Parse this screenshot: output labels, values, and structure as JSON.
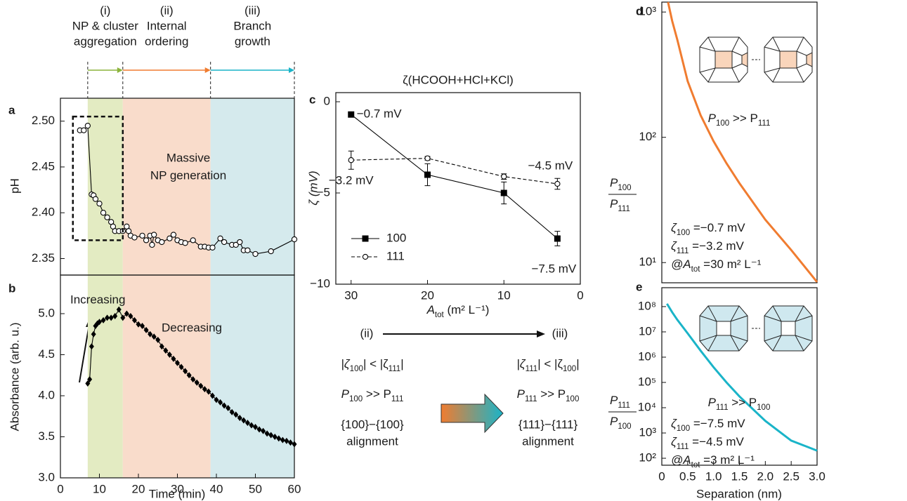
{
  "chart_data": [
    {
      "type": "line",
      "label": "a",
      "ylabel": "pH",
      "phases": [
        {
          "label": [
            "(i)",
            "NP & cluster",
            "aggregation"
          ],
          "start": 7,
          "end": 16,
          "color": "#8cb43c",
          "shade": "#e3ebc2"
        },
        {
          "label": [
            "(ii)",
            "Internal",
            "ordering"
          ],
          "start": 16,
          "end": 38.5,
          "color": "#f07c30",
          "shade": "#f9dccb"
        },
        {
          "label": [
            "(iii)",
            "Branch",
            "growth"
          ],
          "start": 38.5,
          "end": 60,
          "color": "#1ab4c8",
          "shade": "#d5eaed"
        }
      ],
      "x": [
        5,
        6,
        7,
        8,
        8.5,
        9,
        10,
        11,
        12,
        13,
        13.5,
        14,
        15,
        16,
        17,
        17.5,
        18,
        19,
        21,
        22,
        23,
        23.5,
        24,
        25,
        26,
        28,
        29,
        30,
        31,
        32,
        34,
        36,
        37,
        38,
        39,
        41,
        42,
        44,
        45,
        46,
        47,
        48,
        50,
        54,
        60
      ],
      "series": [
        {
          "values": [
            2.49,
            2.49,
            2.495,
            2.42,
            2.419,
            2.415,
            2.41,
            2.4,
            2.395,
            2.39,
            2.385,
            2.38,
            2.38,
            2.38,
            2.385,
            2.38,
            2.375,
            2.373,
            2.375,
            2.37,
            2.375,
            2.365,
            2.376,
            2.37,
            2.368,
            2.372,
            2.376,
            2.37,
            2.368,
            2.367,
            2.37,
            2.363,
            2.363,
            2.362,
            2.362,
            2.372,
            2.368,
            2.365,
            2.365,
            2.368,
            2.359,
            2.359,
            2.355,
            2.358,
            2.371
          ],
          "color": "#000000",
          "marker": "open-circle"
        }
      ],
      "xlim": [
        0,
        60
      ],
      "ylim": [
        2.332,
        2.525
      ],
      "yticks": [
        2.35,
        {
          "value": 2.4,
          "label": "2.40"
        },
        2.45,
        {
          "value": 2.5,
          "label": "2.50"
        }
      ],
      "highlight_box": {
        "x": [
          3.2,
          16
        ],
        "y": [
          2.37,
          2.505
        ]
      },
      "annotation": [
        "Massive",
        "NP generation"
      ]
    },
    {
      "type": "line",
      "label": "b",
      "xlabel": "Time (min)",
      "ylabel": "Absorbance (arb. u.)",
      "x": [
        7,
        7.5,
        8,
        8.5,
        9,
        9.5,
        10,
        11,
        12,
        13,
        14,
        15,
        16,
        17,
        18,
        19,
        20,
        21,
        22,
        23,
        24,
        25,
        26,
        27,
        28,
        29,
        30,
        31,
        32,
        33,
        34,
        35,
        36,
        37,
        38,
        39,
        40,
        41,
        42,
        43,
        44,
        45,
        46,
        47,
        48,
        49,
        50,
        51,
        52,
        53,
        54,
        55,
        56,
        57,
        58,
        59,
        60
      ],
      "series": [
        {
          "values": [
            4.15,
            4.2,
            4.6,
            4.75,
            4.85,
            4.88,
            4.9,
            4.92,
            4.95,
            4.95,
            4.97,
            5.05,
            4.95,
            5.0,
            4.97,
            4.92,
            4.87,
            4.85,
            4.8,
            4.75,
            4.72,
            4.68,
            4.6,
            4.55,
            4.5,
            4.45,
            4.4,
            4.35,
            4.3,
            4.25,
            4.2,
            4.16,
            4.12,
            4.08,
            4.05,
            4.0,
            3.95,
            3.92,
            3.88,
            3.85,
            3.8,
            3.77,
            3.73,
            3.7,
            3.67,
            3.64,
            3.62,
            3.59,
            3.57,
            3.54,
            3.52,
            3.5,
            3.48,
            3.46,
            3.45,
            3.43,
            3.41
          ],
          "color": "#000000",
          "marker": "diamond"
        }
      ],
      "xlim": [
        0,
        60
      ],
      "xticks": [
        0,
        10,
        20,
        30,
        40,
        50,
        60
      ],
      "ylim": [
        3.0,
        5.47
      ],
      "yticks": [
        {
          "value": 3,
          "label": "3.0"
        },
        3.5,
        {
          "value": 4,
          "label": "4.0"
        },
        4.5,
        {
          "value": 5,
          "label": "5.0"
        }
      ],
      "annotations": [
        "Increasing",
        "Decreasing"
      ]
    },
    {
      "type": "line",
      "label": "c",
      "title": "ζ(HCOOH+HCl+KCl)",
      "ylabel": "ζ (mV)",
      "xlabel": [
        "A",
        "tot",
        " (m² L⁻¹)"
      ],
      "x": [
        30,
        20,
        10,
        3
      ],
      "series": [
        {
          "name": "100",
          "values": [
            -0.7,
            -4.0,
            -5.0,
            -7.5
          ],
          "errors": [
            0.1,
            0.6,
            0.6,
            0.4
          ],
          "value_labels": [
            "−0.7 mV",
            null,
            null,
            "−7.5 mV"
          ],
          "value_label_colors": [
            "#f07c30",
            null,
            null,
            "#1ab4c8"
          ],
          "color": "#000000",
          "marker": "filled-square",
          "dashed": false
        },
        {
          "name": "111",
          "values": [
            -3.2,
            -3.1,
            -4.1,
            -4.5
          ],
          "errors": [
            0.5,
            0.1,
            0.15,
            0.3
          ],
          "value_labels": [
            "−3.2 mV",
            null,
            null,
            "−4.5 mV"
          ],
          "value_label_colors": [
            "#f07c30",
            null,
            null,
            "#1ab4c8"
          ],
          "color": "#000000",
          "marker": "open-circle",
          "dashed": true
        }
      ],
      "xlim": [
        32,
        0
      ],
      "xticks": [
        30,
        20,
        10,
        0
      ],
      "ylim": [
        -10,
        0.5
      ],
      "yticks": [
        0,
        {
          "value": -5,
          "label": "−5"
        },
        {
          "value": -10,
          "label": "−10"
        }
      ]
    },
    {
      "type": "line",
      "label": "d",
      "log": true,
      "ylabel": {
        "numerator": [
          "P",
          "100"
        ],
        "denominator": [
          "P",
          "111"
        ]
      },
      "x": [
        0.12,
        0.2,
        0.3,
        0.5,
        0.75,
        1,
        1.25,
        1.5,
        2,
        2.5,
        3
      ],
      "series": [
        {
          "values": [
            1200,
            850,
            600,
            280,
            150,
            93,
            62,
            43,
            22,
            12.6,
            7
          ],
          "color": "#f07c30",
          "marker": "none"
        }
      ],
      "xlim": [
        0,
        3
      ],
      "ylim": [
        6.9,
        1200
      ],
      "yticks": [
        {
          "value": 10,
          "label": "10¹"
        },
        {
          "value": 100,
          "label": "10²"
        },
        {
          "value": 1000,
          "label": "10³"
        }
      ],
      "compare": [
        "P",
        "100",
        " >> P",
        "111"
      ],
      "compare_color": "#f07c30",
      "notes": [
        [
          "ζ",
          "100",
          " =−0.7 mV"
        ],
        [
          "ζ",
          "111",
          " =−3.2 mV"
        ],
        [
          "@A",
          "tot",
          " =30 m² L⁻¹"
        ]
      ]
    },
    {
      "type": "line",
      "label": "e",
      "log": true,
      "xlabel": "Separation (nm)",
      "ylabel": {
        "numerator": [
          "P",
          "111"
        ],
        "denominator": [
          "P",
          "100"
        ]
      },
      "x": [
        0.1,
        0.2,
        0.3,
        0.5,
        0.75,
        1,
        1.25,
        1.5,
        2,
        2.5,
        3
      ],
      "series": [
        {
          "values": [
            130000000,
            60000000,
            30000000,
            8700000,
            1800000,
            400000,
            100000,
            28000,
            3000,
            500,
            200
          ],
          "color": "#1ab4c8",
          "marker": "none"
        }
      ],
      "xlim": [
        0,
        3
      ],
      "xticks": [
        0,
        0.5,
        {
          "value": 1,
          "label": "1.0"
        },
        1.5,
        {
          "value": 2,
          "label": "2.0"
        },
        2.5,
        {
          "value": 3,
          "label": "3.0"
        }
      ],
      "ylim": [
        53,
        560000000
      ],
      "yticks": [
        {
          "value": 100,
          "label": "10²"
        },
        {
          "value": 1000,
          "label": "10³"
        },
        {
          "value": 10000,
          "label": "10⁴"
        },
        {
          "value": 100000,
          "label": "10⁵"
        },
        {
          "value": 1000000,
          "label": "10⁶"
        },
        {
          "value": 10000000,
          "label": "10⁷"
        },
        {
          "value": 100000000,
          "label": "10⁸"
        }
      ],
      "compare": [
        "P",
        "111",
        " >> P",
        "100"
      ],
      "compare_color": "#1ab4c8",
      "notes": [
        [
          "ζ",
          "100",
          " =−7.5 mV"
        ],
        [
          "ζ",
          "111",
          " =−4.5 mV"
        ],
        [
          "@A",
          "tot",
          " =3 m² L⁻¹"
        ]
      ]
    }
  ],
  "scheme": {
    "from": "(ii)",
    "to": "(iii)",
    "from_color": "#f07c30",
    "to_color": "#1ab4c8",
    "left": {
      "zeta": [
        "|ζ",
        "100",
        "| < |ζ",
        "111",
        "|"
      ],
      "p": [
        "P",
        "100",
        " >> P",
        "111"
      ],
      "facets": "{100}−{100}",
      "alignment": "alignment",
      "color": "#f07c30"
    },
    "right": {
      "zeta": [
        "|ζ",
        "111",
        "| < |ζ",
        "100",
        "|"
      ],
      "p": [
        "P",
        "111",
        " >> P",
        "100"
      ],
      "facets": "{111}−{111}",
      "alignment": "alignment",
      "color": "#1ab4c8"
    }
  }
}
